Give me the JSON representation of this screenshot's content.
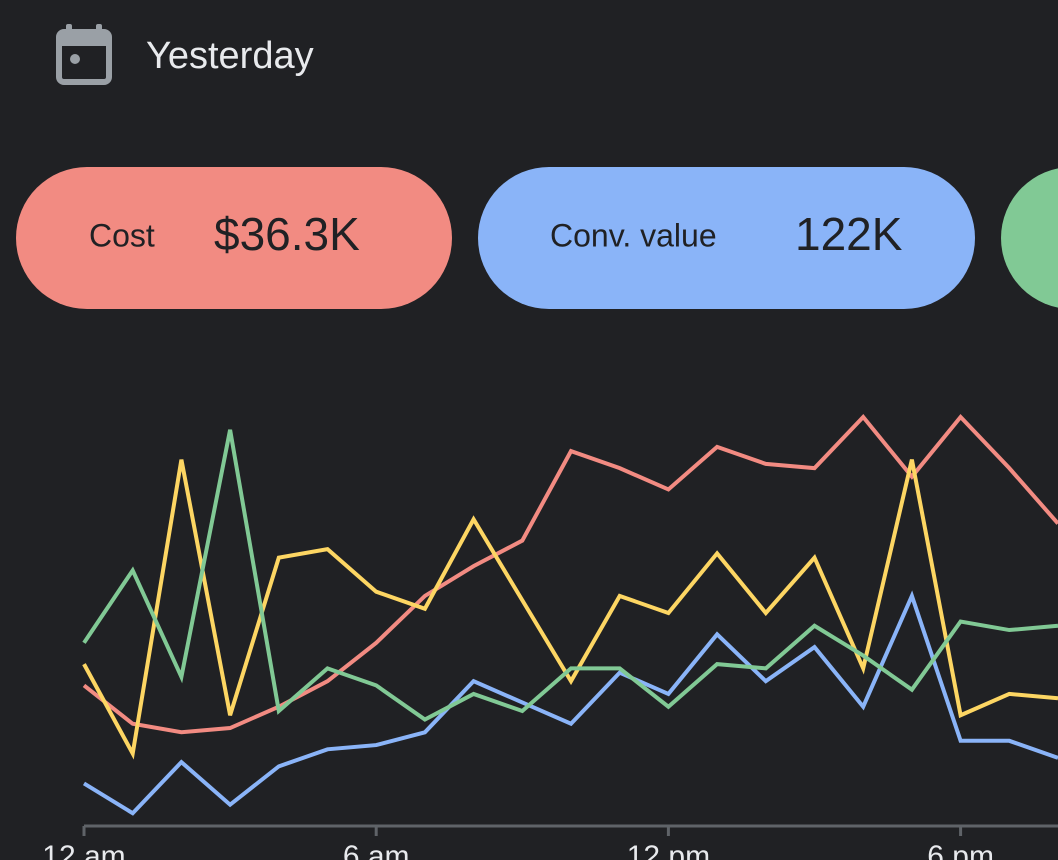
{
  "header": {
    "title": "Yesterday"
  },
  "chips": [
    "$36.3K",
    "122K"
  ],
  "chart_data": {
    "type": "line",
    "x": [
      0,
      1,
      2,
      3,
      4,
      5,
      6,
      7,
      8,
      9,
      10,
      11,
      12,
      13,
      14,
      15,
      16,
      17,
      18,
      19,
      20
    ],
    "xlim": [
      0,
      20
    ],
    "xticks": [
      {
        "value": 0,
        "label": "12 am"
      },
      {
        "value": 6,
        "label": "6 am"
      },
      {
        "value": 12,
        "label": "12 pm"
      },
      {
        "value": 18,
        "label": "6 pm"
      }
    ],
    "ylim": [
      0,
      100
    ],
    "series": [
      {
        "name": "Cost",
        "color": "#f28b82",
        "values": [
          33,
          24,
          22,
          23,
          28,
          34,
          43,
          54,
          61,
          67,
          88,
          84,
          79,
          89,
          85,
          84,
          96,
          82,
          96,
          84,
          71
        ]
      },
      {
        "name": "Conv. value",
        "color": "#8ab4f8",
        "values": [
          10,
          3,
          15,
          5,
          14,
          18,
          19,
          22,
          34,
          29,
          24,
          36,
          31,
          45,
          34,
          42,
          28,
          54,
          20,
          20,
          16
        ]
      },
      {
        "color": "#fdd663",
        "values": [
          38,
          17,
          86,
          26,
          63,
          65,
          55,
          51,
          72,
          53,
          34,
          54,
          50,
          64,
          50,
          63,
          37,
          86,
          26,
          31,
          30
        ]
      },
      {
        "color": "#81c995",
        "values": [
          43,
          60,
          35,
          93,
          27,
          37,
          33,
          25,
          31,
          27,
          37,
          37,
          28,
          38,
          37,
          47,
          40,
          32,
          48,
          46,
          47
        ]
      }
    ]
  }
}
